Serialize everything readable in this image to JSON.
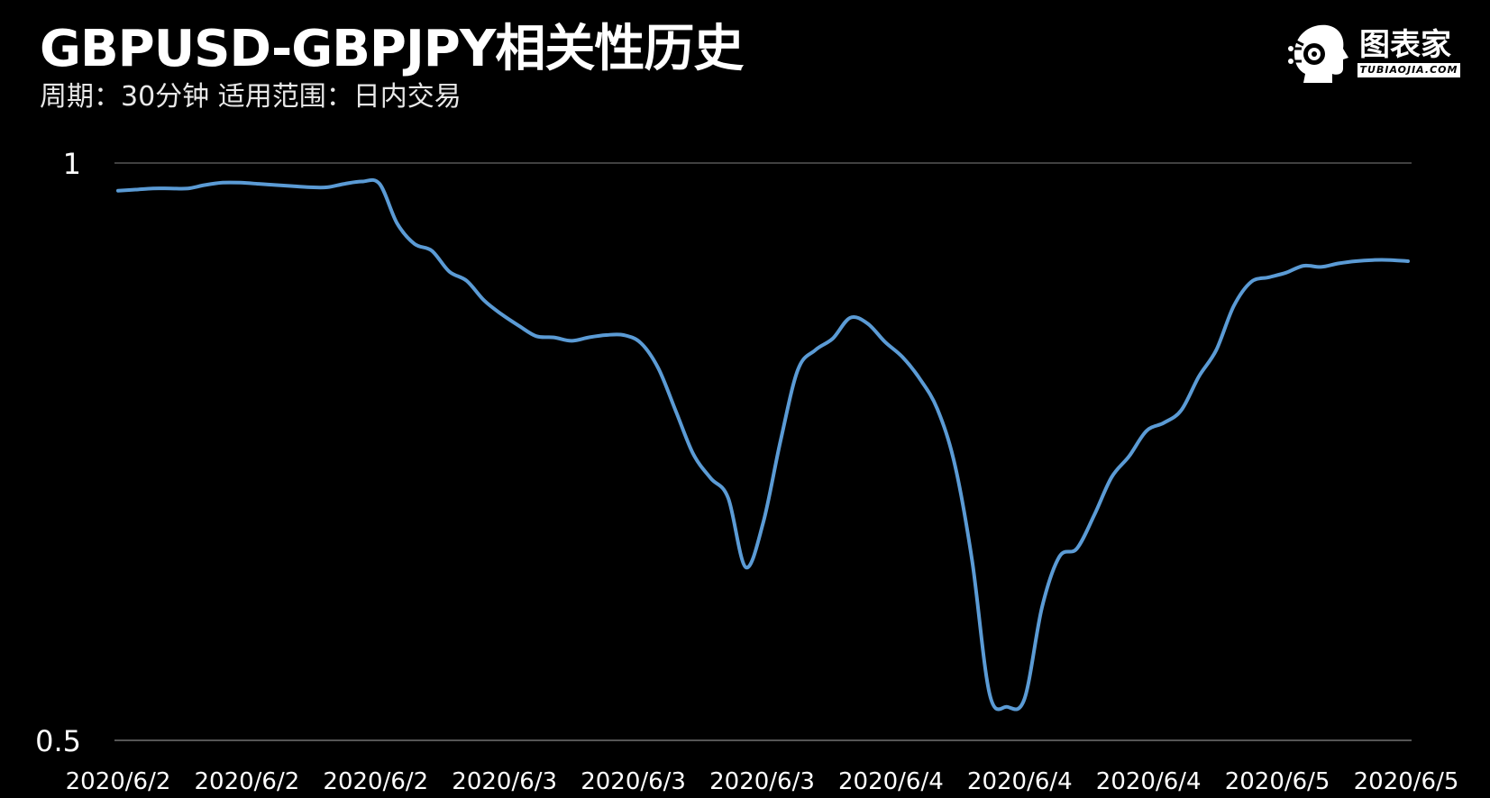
{
  "header": {
    "title": "GBPUSD-GBPJPY相关性历史",
    "subtitle": "周期：30分钟  适用范围：日内交易"
  },
  "logo": {
    "name": "图表家",
    "sub": "TUBIAOJIA.COM",
    "icon": "robot-head-icon"
  },
  "colors": {
    "background": "#000000",
    "line": "#5b9bd5",
    "grid": "#555555",
    "text": "#ffffff"
  },
  "chart_data": {
    "type": "line",
    "title": "GBPUSD-GBPJPY相关性历史",
    "subtitle": "周期：30分钟  适用范围：日内交易",
    "xlabel": "",
    "ylabel": "",
    "ylim": [
      0.5,
      1
    ],
    "yticks": [
      1,
      0.5
    ],
    "ytick_labels": [
      "1",
      "0.5"
    ],
    "grid": true,
    "legend": "none",
    "x_tick_labels": [
      "2020/6/2",
      "2020/6/2",
      "2020/6/2",
      "2020/6/3",
      "2020/6/3",
      "2020/6/3",
      "2020/6/4",
      "2020/6/4",
      "2020/6/4",
      "2020/6/5",
      "2020/6/5"
    ],
    "series": [
      {
        "name": "",
        "values": [
          0.976,
          0.977,
          0.978,
          0.978,
          0.978,
          0.981,
          0.983,
          0.983,
          0.982,
          0.981,
          0.98,
          0.979,
          0.979,
          0.982,
          0.984,
          0.982,
          0.948,
          0.93,
          0.924,
          0.906,
          0.898,
          0.881,
          0.869,
          0.859,
          0.85,
          0.849,
          0.846,
          0.849,
          0.851,
          0.851,
          0.844,
          0.822,
          0.785,
          0.748,
          0.727,
          0.71,
          0.65,
          0.688,
          0.759,
          0.821,
          0.838,
          0.848,
          0.866,
          0.861,
          0.845,
          0.832,
          0.813,
          0.787,
          0.739,
          0.655,
          0.54,
          0.529,
          0.536,
          0.615,
          0.659,
          0.666,
          0.695,
          0.728,
          0.746,
          0.768,
          0.775,
          0.786,
          0.815,
          0.838,
          0.876,
          0.897,
          0.901,
          0.905,
          0.911,
          0.91,
          0.913,
          0.915,
          0.916,
          0.916,
          0.915
        ]
      }
    ]
  }
}
